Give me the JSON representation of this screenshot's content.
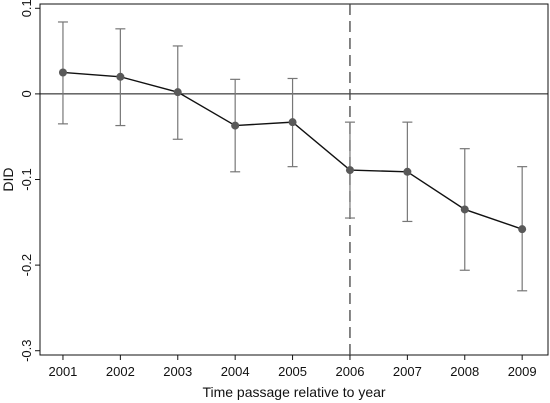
{
  "chart_data": {
    "type": "line",
    "title": "",
    "xlabel": "Time passage relative to year",
    "ylabel": "DID",
    "x": [
      2001,
      2002,
      2003,
      2004,
      2005,
      2006,
      2007,
      2008,
      2009
    ],
    "series": [
      {
        "values": [
          0.025,
          0.02,
          0.002,
          -0.037,
          -0.033,
          -0.089,
          -0.091,
          -0.135,
          -0.158
        ],
        "ci_lower": [
          -0.035,
          -0.037,
          -0.053,
          -0.091,
          -0.085,
          -0.145,
          -0.149,
          -0.206,
          -0.23
        ],
        "ci_upper": [
          0.084,
          0.076,
          0.056,
          0.017,
          0.018,
          -0.033,
          -0.033,
          -0.064,
          -0.085
        ]
      }
    ],
    "x_ticks": [
      "2001",
      "2002",
      "2003",
      "2004",
      "2005",
      "2006",
      "2007",
      "2008",
      "2009"
    ],
    "y_ticks": [
      "0.1",
      "0",
      "-0.1",
      "-0.2",
      "-0.3"
    ],
    "y_tick_values": [
      0.1,
      0,
      -0.1,
      -0.2,
      -0.3
    ],
    "ylim": [
      -0.305,
      0.105
    ],
    "xlim": [
      2000.6,
      2009.45
    ],
    "reference_lines": {
      "horizontal": 0,
      "vertical": 2006
    },
    "grid": false,
    "legend": "none",
    "colors": {
      "line": "#111111",
      "marker": "#595959",
      "ci": "#777777",
      "axis": "#111111"
    }
  }
}
